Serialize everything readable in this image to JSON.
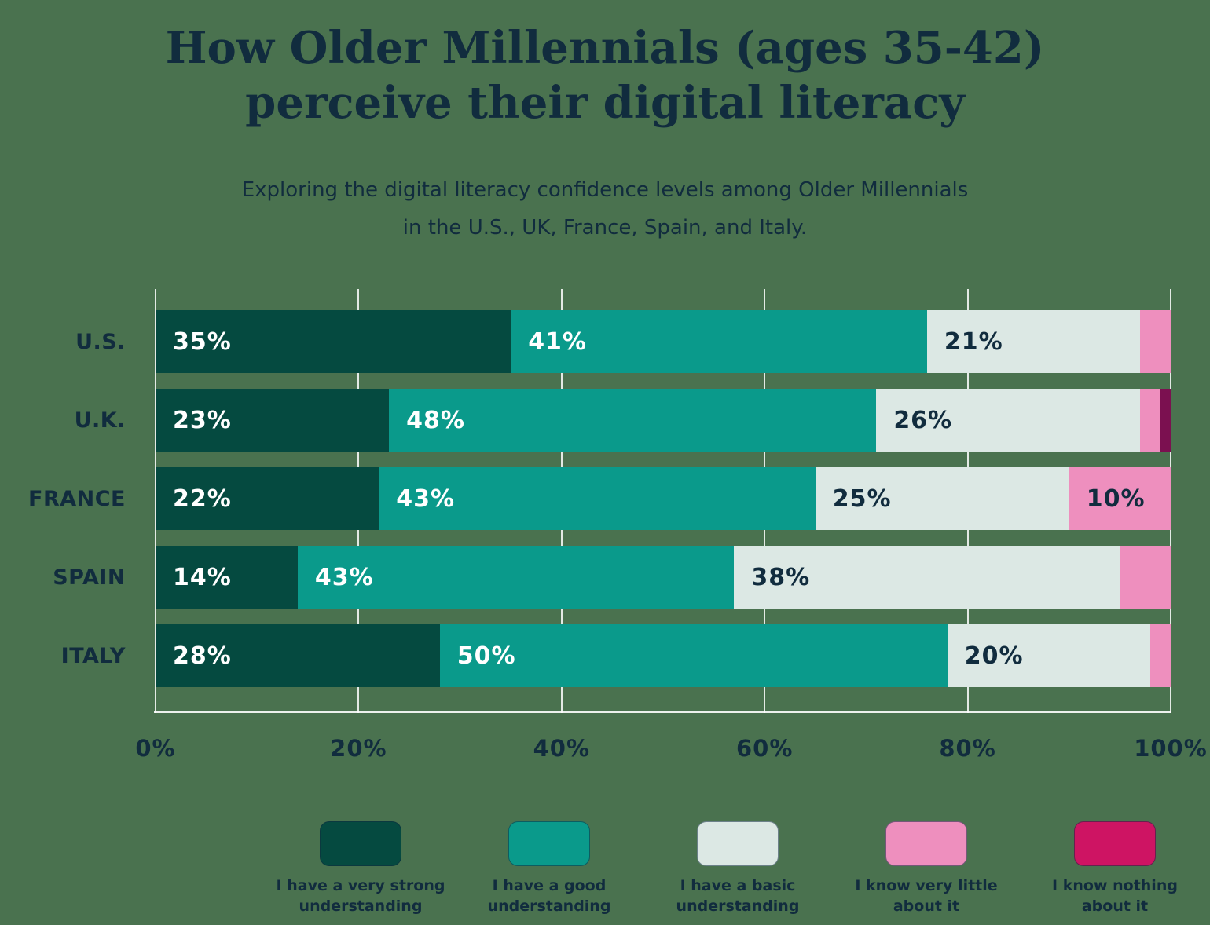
{
  "header": {
    "title_lines": [
      "How Older Millennials (ages 35-42)",
      "perceive their digital literacy"
    ],
    "subtitle_lines": [
      "Exploring the digital literacy confidence levels among Older Millennials",
      "in the U.S., UK, France, Spain, and Italy."
    ]
  },
  "colors": {
    "background": "#4A724F",
    "text_navy": "#112C3E",
    "gridline_white": "#FFFFFF"
  },
  "chart_data": {
    "type": "bar",
    "orientation": "horizontal",
    "stacked": true,
    "title": "How Older Millennials (ages 35-42) perceive their digital literacy",
    "subtitle": "Exploring the digital literacy confidence levels among Older Millennials in the U.S., UK, France, Spain, and Italy.",
    "categories": [
      "U.S.",
      "U.K.",
      "FRANCE",
      "SPAIN",
      "ITALY"
    ],
    "series": [
      {
        "name": "I have a very strong understanding",
        "color": "#054A40",
        "label_color": "#FFFFFF",
        "values": [
          35,
          23,
          22,
          14,
          28
        ]
      },
      {
        "name": "I have a good understanding",
        "color": "#0A9A8B",
        "label_color": "#FFFFFF",
        "values": [
          41,
          48,
          43,
          43,
          50
        ]
      },
      {
        "name": "I have a basic understanding",
        "color": "#DCE8E4",
        "label_color": "#112C3E",
        "values": [
          21,
          26,
          25,
          38,
          20
        ]
      },
      {
        "name": "I know very little about it",
        "color": "#EE8FBE",
        "label_color": "#112C3E",
        "values": [
          3,
          2,
          10,
          5,
          2
        ]
      },
      {
        "name": "I know nothing about it",
        "color": "#CE1463",
        "bar_color": "#7B1050",
        "label_color": "#FFFFFF",
        "values": [
          0,
          1,
          0,
          0,
          0
        ]
      }
    ],
    "x_ticks": [
      "0%",
      "20%",
      "40%",
      "60%",
      "80%",
      "100%"
    ],
    "xlim": [
      0,
      100
    ],
    "grid": true,
    "legend_position": "bottom",
    "value_label_suffix": "%",
    "value_label_min_to_show": 10
  }
}
